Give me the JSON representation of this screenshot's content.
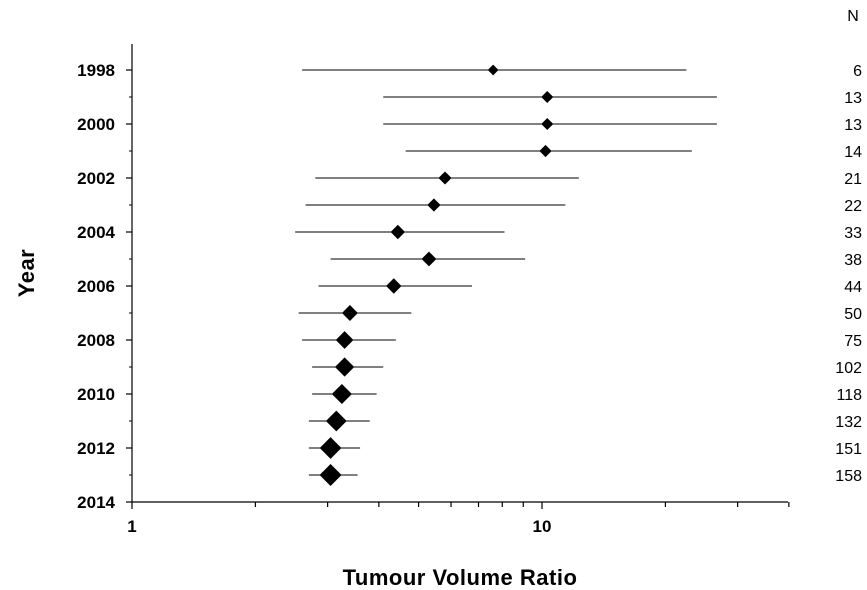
{
  "chart_data": {
    "type": "forest",
    "xlabel": "Tumour Volume Ratio",
    "ylabel": "Year",
    "xscale": "log",
    "xlim": [
      1,
      40
    ],
    "x_tick_labels": [
      "1",
      "10"
    ],
    "y_tick_labels": [
      "1998",
      "2000",
      "2002",
      "2004",
      "2006",
      "2008",
      "2010",
      "2012",
      "2014"
    ],
    "n_header": "N",
    "grid": false,
    "rows": [
      {
        "year": 1998,
        "estimate": 7.6,
        "lower": 2.6,
        "upper": 22.5,
        "n": "6"
      },
      {
        "year": 1999,
        "estimate": 10.3,
        "lower": 4.1,
        "upper": 26.7,
        "n": "13"
      },
      {
        "year": 2000,
        "estimate": 10.3,
        "lower": 4.1,
        "upper": 26.7,
        "n": "13"
      },
      {
        "year": 2001,
        "estimate": 10.2,
        "lower": 4.65,
        "upper": 23.2,
        "n": "14"
      },
      {
        "year": 2002,
        "estimate": 5.8,
        "lower": 2.8,
        "upper": 12.3,
        "n": "21"
      },
      {
        "year": 2003,
        "estimate": 5.45,
        "lower": 2.65,
        "upper": 11.4,
        "n": "22"
      },
      {
        "year": 2004,
        "estimate": 4.45,
        "lower": 2.5,
        "upper": 8.1,
        "n": "33"
      },
      {
        "year": 2005,
        "estimate": 5.3,
        "lower": 3.05,
        "upper": 9.1,
        "n": "38"
      },
      {
        "year": 2006,
        "estimate": 4.35,
        "lower": 2.85,
        "upper": 6.75,
        "n": "44"
      },
      {
        "year": 2007,
        "estimate": 3.4,
        "lower": 2.55,
        "upper": 4.8,
        "n": "50"
      },
      {
        "year": 2008,
        "estimate": 3.3,
        "lower": 2.6,
        "upper": 4.4,
        "n": "75"
      },
      {
        "year": 2009,
        "estimate": 3.3,
        "lower": 2.75,
        "upper": 4.1,
        "n": "102"
      },
      {
        "year": 2010,
        "estimate": 3.25,
        "lower": 2.75,
        "upper": 3.95,
        "n": "118"
      },
      {
        "year": 2011,
        "estimate": 3.15,
        "lower": 2.7,
        "upper": 3.8,
        "n": "132"
      },
      {
        "year": 2012,
        "estimate": 3.05,
        "lower": 2.7,
        "upper": 3.6,
        "n": "151"
      },
      {
        "year": 2013,
        "estimate": 3.05,
        "lower": 2.7,
        "upper": 3.55,
        "n": "158"
      }
    ]
  }
}
